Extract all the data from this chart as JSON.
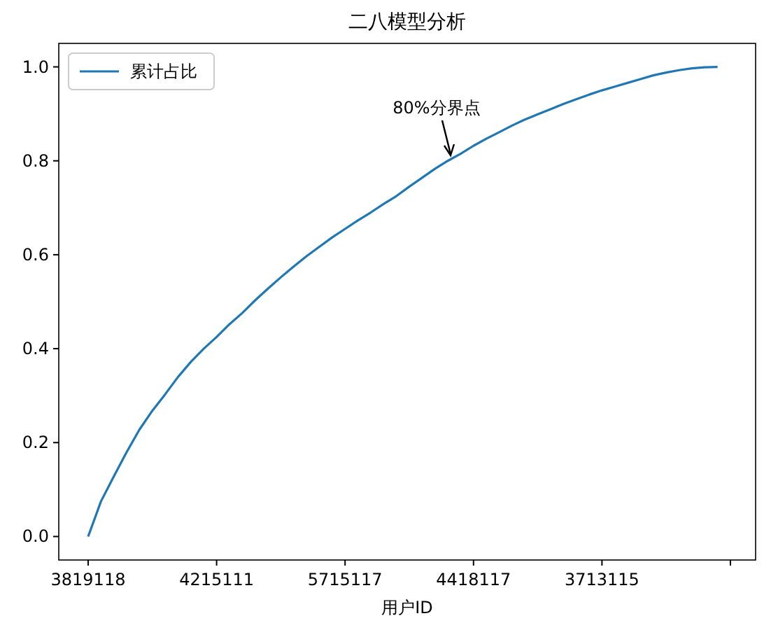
{
  "chart_data": {
    "type": "line",
    "title": "二八模型分析",
    "xlabel": "用户ID",
    "categories": [
      "3819118",
      null,
      null,
      null,
      null,
      null,
      null,
      null,
      null,
      null,
      "4215111",
      null,
      null,
      null,
      null,
      null,
      null,
      null,
      null,
      null,
      "5715117",
      null,
      null,
      null,
      null,
      null,
      null,
      null,
      null,
      null,
      "4418117",
      null,
      null,
      null,
      null,
      null,
      null,
      null,
      null,
      null,
      "3713115",
      null,
      null,
      null,
      null,
      null,
      null,
      null,
      null,
      null,
      null
    ],
    "series": [
      {
        "name": "累计占比",
        "color": "#1f77b4",
        "values": [
          0,
          0.075,
          0.128,
          0.18,
          0.228,
          0.268,
          0.303,
          0.34,
          0.372,
          0.4,
          0.425,
          0.452,
          0.476,
          0.503,
          0.528,
          0.552,
          0.575,
          0.597,
          0.617,
          0.637,
          0.655,
          0.673,
          0.69,
          0.708,
          0.725,
          0.745,
          0.764,
          0.783,
          0.8,
          0.815,
          0.832,
          0.847,
          0.861,
          0.875,
          0.888,
          0.899,
          0.91,
          0.921,
          0.931,
          0.941,
          0.95,
          0.958,
          0.966,
          0.974,
          0.982,
          0.988,
          0.993,
          0.997,
          0.999,
          1.0,
          null
        ]
      }
    ],
    "ylim": [
      -0.05,
      1.05
    ],
    "yticks": [
      {
        "value": 0,
        "label": "0.0"
      },
      {
        "value": 0.2,
        "label": "0.2"
      },
      {
        "value": 0.4,
        "label": "0.4"
      },
      {
        "value": 0.6,
        "label": "0.6"
      },
      {
        "value": 0.8,
        "label": "0.8"
      },
      {
        "value": 1,
        "label": "1.0"
      }
    ],
    "annotations": [
      "80%分界点"
    ],
    "legend": "top left",
    "grid": false,
    "marker": "none",
    "line_style": "solid"
  }
}
